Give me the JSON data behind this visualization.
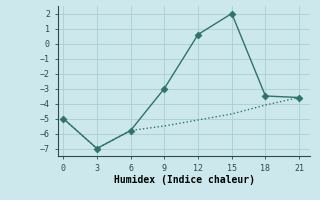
{
  "xlabel": "Humidex (Indice chaleur)",
  "line1_x": [
    0,
    3,
    6,
    9,
    12,
    15,
    18,
    21
  ],
  "line1_y": [
    -5,
    -7,
    -5.8,
    -3,
    0.6,
    2,
    -3.5,
    -3.6
  ],
  "line2_x": [
    0,
    3,
    6,
    9,
    12,
    15,
    18,
    21
  ],
  "line2_y": [
    -5,
    -7,
    -5.8,
    -5.5,
    -5.1,
    -4.7,
    -4.1,
    -3.6
  ],
  "line_color": "#2d7368",
  "bg_color": "#cce8ec",
  "grid_color": "#aacdd5",
  "xlim": [
    -0.5,
    22
  ],
  "ylim": [
    -7.5,
    2.5
  ],
  "xticks": [
    0,
    3,
    6,
    9,
    12,
    15,
    18,
    21
  ],
  "yticks": [
    -7,
    -6,
    -5,
    -4,
    -3,
    -2,
    -1,
    0,
    1,
    2
  ],
  "marker": "D",
  "marker_size": 3.5,
  "linewidth": 1.0,
  "fontsize_ticks": 6.0,
  "fontsize_xlabel": 7.0
}
